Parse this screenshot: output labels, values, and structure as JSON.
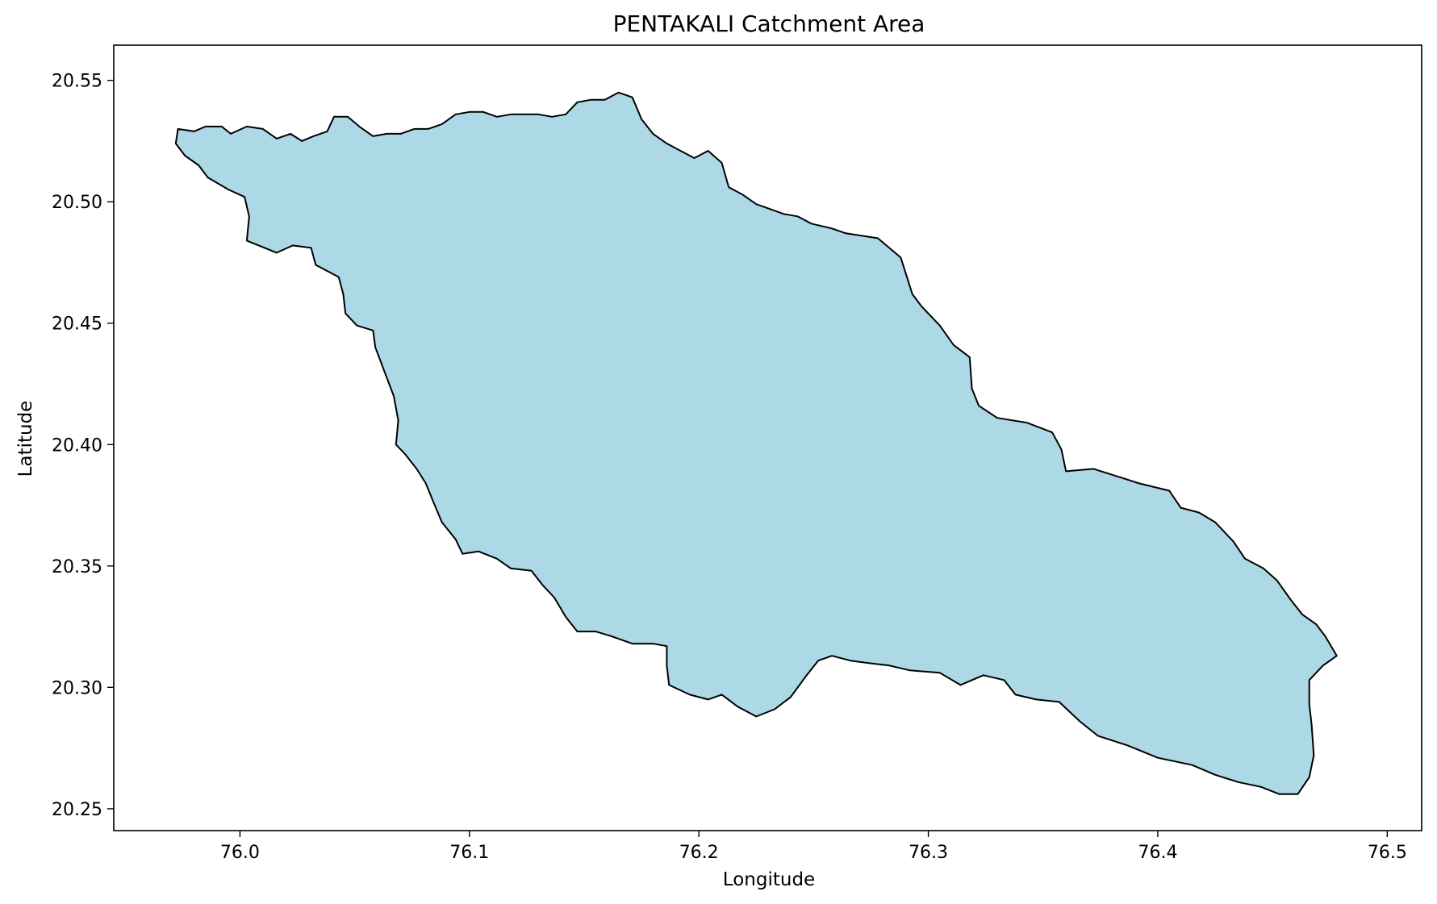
{
  "chart_data": {
    "type": "map",
    "title": "PENTAKALI Catchment Area",
    "xlabel": "Longitude",
    "ylabel": "Latitude",
    "xlim": [
      75.945,
      76.515
    ],
    "ylim": [
      20.241,
      20.5645
    ],
    "grid": false,
    "x_ticks": [
      {
        "value": 76.0,
        "label": "76.0"
      },
      {
        "value": 76.1,
        "label": "76.1"
      },
      {
        "value": 76.2,
        "label": "76.2"
      },
      {
        "value": 76.3,
        "label": "76.3"
      },
      {
        "value": 76.4,
        "label": "76.4"
      },
      {
        "value": 76.5,
        "label": "76.5"
      }
    ],
    "y_ticks": [
      {
        "value": 20.25,
        "label": "20.25"
      },
      {
        "value": 20.3,
        "label": "20.30"
      },
      {
        "value": 20.35,
        "label": "20.35"
      },
      {
        "value": 20.4,
        "label": "20.40"
      },
      {
        "value": 20.45,
        "label": "20.45"
      },
      {
        "value": 20.5,
        "label": "20.50"
      },
      {
        "value": 20.55,
        "label": "20.55"
      }
    ],
    "fill_color": "#add8e6",
    "edge_color": "#000000",
    "boundary": [
      [
        75.973,
        20.53
      ],
      [
        75.98,
        20.529
      ],
      [
        75.985,
        20.531
      ],
      [
        75.992,
        20.531
      ],
      [
        75.996,
        20.528
      ],
      [
        76.003,
        20.531
      ],
      [
        76.01,
        20.53
      ],
      [
        76.016,
        20.526
      ],
      [
        76.022,
        20.528
      ],
      [
        76.027,
        20.525
      ],
      [
        76.032,
        20.527
      ],
      [
        76.038,
        20.529
      ],
      [
        76.041,
        20.535
      ],
      [
        76.047,
        20.535
      ],
      [
        76.052,
        20.531
      ],
      [
        76.058,
        20.527
      ],
      [
        76.064,
        20.528
      ],
      [
        76.07,
        20.528
      ],
      [
        76.076,
        20.53
      ],
      [
        76.082,
        20.53
      ],
      [
        76.088,
        20.532
      ],
      [
        76.094,
        20.536
      ],
      [
        76.1,
        20.537
      ],
      [
        76.106,
        20.537
      ],
      [
        76.112,
        20.535
      ],
      [
        76.118,
        20.536
      ],
      [
        76.124,
        20.536
      ],
      [
        76.13,
        20.536
      ],
      [
        76.136,
        20.535
      ],
      [
        76.142,
        20.536
      ],
      [
        76.147,
        20.541
      ],
      [
        76.153,
        20.542
      ],
      [
        76.159,
        20.542
      ],
      [
        76.165,
        20.545
      ],
      [
        76.171,
        20.543
      ],
      [
        76.175,
        20.534
      ],
      [
        76.18,
        20.528
      ],
      [
        76.186,
        20.524
      ],
      [
        76.192,
        20.521
      ],
      [
        76.198,
        20.518
      ],
      [
        76.204,
        20.521
      ],
      [
        76.21,
        20.516
      ],
      [
        76.213,
        20.506
      ],
      [
        76.219,
        20.503
      ],
      [
        76.225,
        20.499
      ],
      [
        76.231,
        20.497
      ],
      [
        76.237,
        20.495
      ],
      [
        76.243,
        20.494
      ],
      [
        76.249,
        20.491
      ],
      [
        76.258,
        20.489
      ],
      [
        76.264,
        20.487
      ],
      [
        76.278,
        20.485
      ],
      [
        76.288,
        20.477
      ],
      [
        76.293,
        20.462
      ],
      [
        76.297,
        20.457
      ],
      [
        76.305,
        20.449
      ],
      [
        76.311,
        20.441
      ],
      [
        76.318,
        20.436
      ],
      [
        76.319,
        20.423
      ],
      [
        76.322,
        20.416
      ],
      [
        76.33,
        20.411
      ],
      [
        76.343,
        20.409
      ],
      [
        76.354,
        20.405
      ],
      [
        76.358,
        20.398
      ],
      [
        76.36,
        20.389
      ],
      [
        76.372,
        20.39
      ],
      [
        76.382,
        20.387
      ],
      [
        76.392,
        20.384
      ],
      [
        76.405,
        20.381
      ],
      [
        76.41,
        20.374
      ],
      [
        76.418,
        20.372
      ],
      [
        76.425,
        20.368
      ],
      [
        76.433,
        20.36
      ],
      [
        76.438,
        20.353
      ],
      [
        76.446,
        20.349
      ],
      [
        76.452,
        20.344
      ],
      [
        76.458,
        20.336
      ],
      [
        76.463,
        20.33
      ],
      [
        76.469,
        20.326
      ],
      [
        76.473,
        20.321
      ],
      [
        76.478,
        20.313
      ],
      [
        76.472,
        20.309
      ],
      [
        76.466,
        20.303
      ],
      [
        76.466,
        20.293
      ],
      [
        76.467,
        20.285
      ],
      [
        76.468,
        20.272
      ],
      [
        76.466,
        20.263
      ],
      [
        76.461,
        20.256
      ],
      [
        76.453,
        20.256
      ],
      [
        76.445,
        20.259
      ],
      [
        76.435,
        20.261
      ],
      [
        76.425,
        20.264
      ],
      [
        76.415,
        20.268
      ],
      [
        76.4,
        20.271
      ],
      [
        76.387,
        20.276
      ],
      [
        76.374,
        20.28
      ],
      [
        76.366,
        20.286
      ],
      [
        76.357,
        20.294
      ],
      [
        76.347,
        20.295
      ],
      [
        76.338,
        20.297
      ],
      [
        76.333,
        20.303
      ],
      [
        76.324,
        20.305
      ],
      [
        76.314,
        20.301
      ],
      [
        76.305,
        20.306
      ],
      [
        76.292,
        20.307
      ],
      [
        76.283,
        20.309
      ],
      [
        76.274,
        20.31
      ],
      [
        76.266,
        20.311
      ],
      [
        76.258,
        20.313
      ],
      [
        76.252,
        20.311
      ],
      [
        76.247,
        20.305
      ],
      [
        76.24,
        20.296
      ],
      [
        76.233,
        20.291
      ],
      [
        76.225,
        20.288
      ],
      [
        76.217,
        20.292
      ],
      [
        76.21,
        20.297
      ],
      [
        76.204,
        20.295
      ],
      [
        76.196,
        20.297
      ],
      [
        76.187,
        20.301
      ],
      [
        76.186,
        20.309
      ],
      [
        76.186,
        20.317
      ],
      [
        76.18,
        20.318
      ],
      [
        76.171,
        20.318
      ],
      [
        76.162,
        20.321
      ],
      [
        76.155,
        20.323
      ],
      [
        76.147,
        20.323
      ],
      [
        76.142,
        20.329
      ],
      [
        76.137,
        20.337
      ],
      [
        76.132,
        20.342
      ],
      [
        76.127,
        20.348
      ],
      [
        76.118,
        20.349
      ],
      [
        76.112,
        20.353
      ],
      [
        76.104,
        20.356
      ],
      [
        76.097,
        20.355
      ],
      [
        76.094,
        20.361
      ],
      [
        76.088,
        20.368
      ],
      [
        76.084,
        20.377
      ],
      [
        76.081,
        20.384
      ],
      [
        76.077,
        20.39
      ],
      [
        76.072,
        20.396
      ],
      [
        76.068,
        20.4
      ],
      [
        76.069,
        20.41
      ],
      [
        76.067,
        20.42
      ],
      [
        76.063,
        20.43
      ],
      [
        76.059,
        20.44
      ],
      [
        76.058,
        20.447
      ],
      [
        76.051,
        20.449
      ],
      [
        76.046,
        20.454
      ],
      [
        76.045,
        20.462
      ],
      [
        76.043,
        20.469
      ],
      [
        76.033,
        20.474
      ],
      [
        76.031,
        20.481
      ],
      [
        76.023,
        20.482
      ],
      [
        76.016,
        20.479
      ],
      [
        76.003,
        20.484
      ],
      [
        76.004,
        20.494
      ],
      [
        76.002,
        20.502
      ],
      [
        75.995,
        20.505
      ],
      [
        75.986,
        20.51
      ],
      [
        75.982,
        20.515
      ],
      [
        75.976,
        20.519
      ],
      [
        75.972,
        20.524
      ],
      [
        75.973,
        20.53
      ]
    ]
  }
}
